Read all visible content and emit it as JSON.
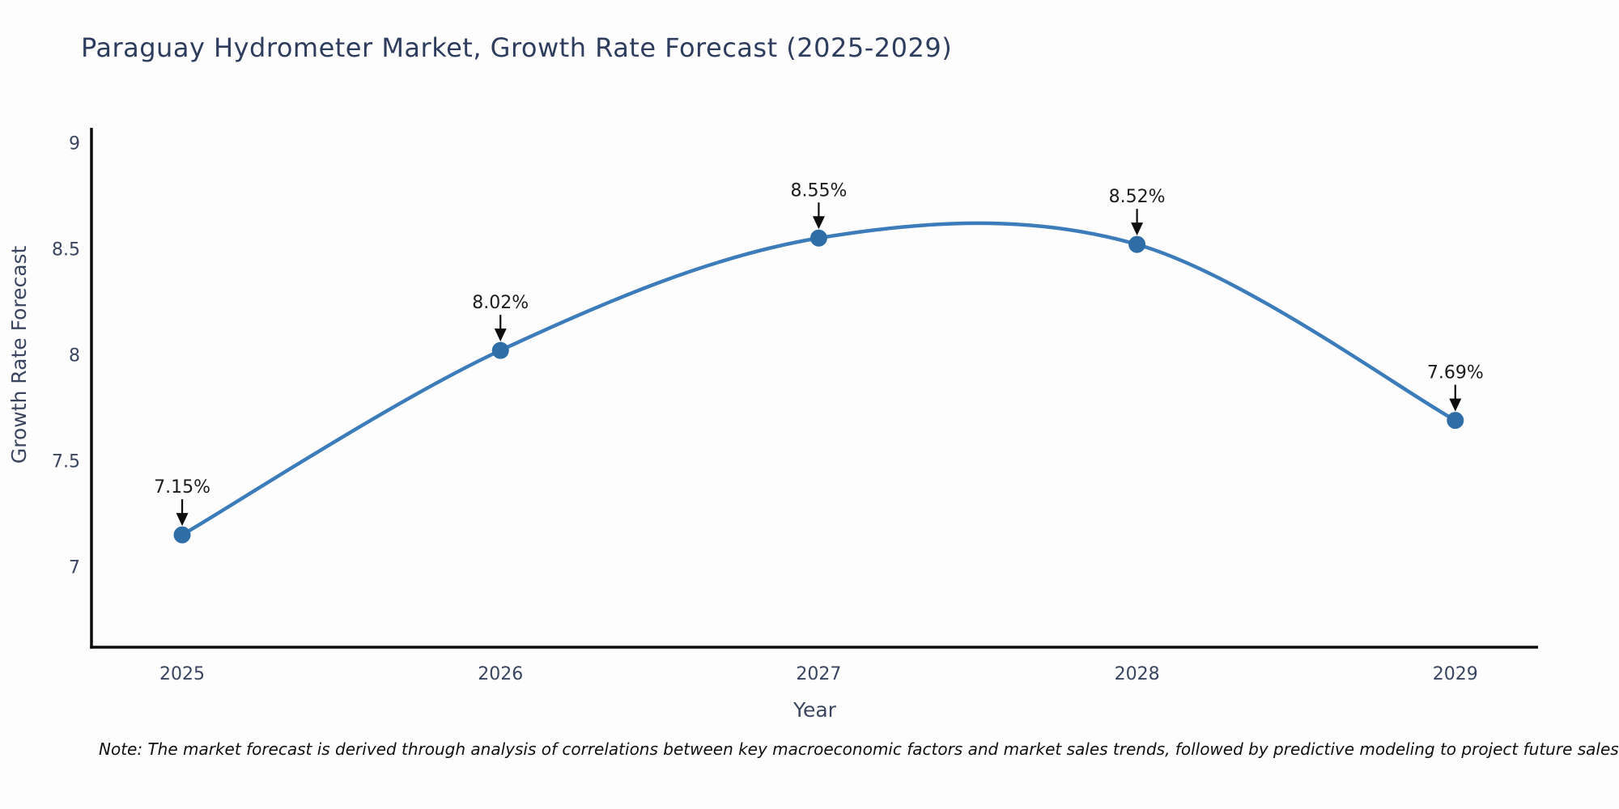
{
  "chart": {
    "title": "Paraguay Hydrometer Market, Growth Rate Forecast (2025-2029)",
    "note": "Note: The market forecast is derived through analysis of correlations between key macroeconomic factors and market sales trends, followed by predictive modeling to project future sales"
  },
  "chart_data": {
    "type": "line",
    "line_shape": "spline",
    "title": "Paraguay Hydrometer Market, Growth Rate Forecast (2025-2029)",
    "xlabel": "Year",
    "ylabel": "Growth Rate Forecast",
    "x": [
      2025,
      2026,
      2027,
      2028,
      2029
    ],
    "values": [
      7.15,
      8.02,
      8.55,
      8.52,
      7.69
    ],
    "point_labels": [
      "7.15%",
      "8.02%",
      "8.55%",
      "8.52%",
      "7.69%"
    ],
    "yticks": [
      7,
      7.5,
      8,
      8.5,
      9
    ],
    "ytick_labels": [
      "7",
      "7.5",
      "8",
      "8.5",
      "9"
    ],
    "xtick_labels": [
      "2025",
      "2026",
      "2027",
      "2028",
      "2029"
    ],
    "ylim": [
      6.62,
      9.07
    ],
    "xlim": [
      2024.715,
      2029.26
    ],
    "grid": false,
    "legend": false,
    "colors": {
      "line": "#3c7cba",
      "marker": "#2e6da6",
      "axis": "#0d0d0d",
      "tick_text": "#3a4660",
      "title_text": "#2e3d5e",
      "annotation_text": "#1c1c1c",
      "arrow": "#0d0d0d",
      "background": "#fdfdfd"
    }
  }
}
